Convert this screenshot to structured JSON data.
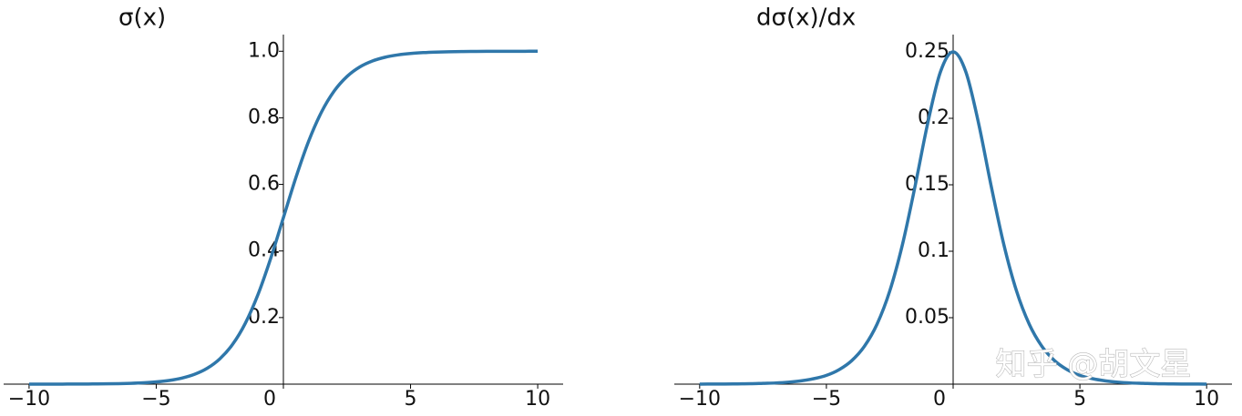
{
  "chart_data": [
    {
      "type": "line",
      "title": "σ(x)",
      "x": [
        -10,
        -9.5,
        -9,
        -8.5,
        -8,
        -7.5,
        -7,
        -6.5,
        -6,
        -5.5,
        -5,
        -4.5,
        -4,
        -3.5,
        -3,
        -2.5,
        -2,
        -1.5,
        -1,
        -0.5,
        0,
        0.5,
        1,
        1.5,
        2,
        2.5,
        3,
        3.5,
        4,
        4.5,
        5,
        5.5,
        6,
        6.5,
        7,
        7.5,
        8,
        8.5,
        9,
        9.5,
        10
      ],
      "series": [
        {
          "name": "σ(x)",
          "color": "#2f77aa",
          "values": [
            0.0,
            0.0001,
            0.0001,
            0.0002,
            0.0003,
            0.0006,
            0.0009,
            0.0015,
            0.0025,
            0.0041,
            0.0067,
            0.011,
            0.018,
            0.0293,
            0.0474,
            0.0759,
            0.1192,
            0.1824,
            0.2689,
            0.3775,
            0.5,
            0.6225,
            0.7311,
            0.8176,
            0.8808,
            0.9241,
            0.9526,
            0.9707,
            0.982,
            0.989,
            0.9933,
            0.9959,
            0.9975,
            0.9985,
            0.9991,
            0.9994,
            0.9997,
            0.9998,
            0.9999,
            0.9999,
            1.0
          ]
        }
      ],
      "xlim": [
        -11,
        11
      ],
      "xticks": [
        {
          "value": -10,
          "label": "−10"
        },
        {
          "value": -5,
          "label": "−5"
        },
        0,
        5,
        10
      ],
      "ylim": [
        0,
        1.05
      ],
      "yticks": [
        0.2,
        0.4,
        0.6,
        0.8,
        {
          "value": 1,
          "label": "1.0"
        }
      ],
      "grid": false
    },
    {
      "type": "line",
      "title": "dσ(x)/dx",
      "x": [
        -10,
        -9.5,
        -9,
        -8.5,
        -8,
        -7.5,
        -7,
        -6.5,
        -6,
        -5.5,
        -5,
        -4.5,
        -4,
        -3.5,
        -3,
        -2.5,
        -2,
        -1.5,
        -1,
        -0.5,
        0,
        0.5,
        1,
        1.5,
        2,
        2.5,
        3,
        3.5,
        4,
        4.5,
        5,
        5.5,
        6,
        6.5,
        7,
        7.5,
        8,
        8.5,
        9,
        9.5,
        10
      ],
      "series": [
        {
          "name": "dσ(x)/dx",
          "color": "#2f77aa",
          "values": [
            0.0,
            0.0001,
            0.0001,
            0.0002,
            0.0003,
            0.0006,
            0.0009,
            0.0015,
            0.0025,
            0.0041,
            0.0066,
            0.0109,
            0.0177,
            0.0285,
            0.0452,
            0.0701,
            0.105,
            0.1491,
            0.1966,
            0.235,
            0.25,
            0.235,
            0.1966,
            0.1491,
            0.105,
            0.0701,
            0.0452,
            0.0285,
            0.0177,
            0.0109,
            0.0066,
            0.0041,
            0.0025,
            0.0015,
            0.0009,
            0.0006,
            0.0003,
            0.0002,
            0.0001,
            0.0001,
            0.0
          ]
        }
      ],
      "xlim": [
        -11,
        11
      ],
      "xticks": [
        {
          "value": -10,
          "label": "−10"
        },
        {
          "value": -5,
          "label": "−5"
        },
        0,
        5,
        10
      ],
      "ylim": [
        0,
        0.263
      ],
      "yticks": [
        0.05,
        0.1,
        0.15,
        0.2,
        0.25
      ],
      "grid": false
    }
  ],
  "watermark": "知乎 @胡文星"
}
